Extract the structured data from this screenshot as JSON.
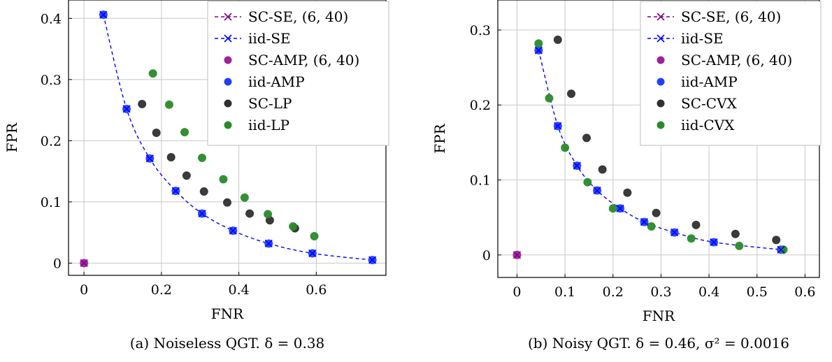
{
  "chart_data": [
    {
      "type": "scatter",
      "caption": "(a) Noiseless QGT. δ = 0.38",
      "xlabel": "FNR",
      "ylabel": "FPR",
      "xlim": [
        -0.04,
        0.78
      ],
      "ylim": [
        -0.02,
        0.43
      ],
      "xticks": [
        0,
        0.2,
        0.4,
        0.6
      ],
      "xtick_labels": [
        "0",
        "0.2",
        "0.4",
        "0.6"
      ],
      "yticks": [
        0,
        0.1,
        0.2,
        0.3,
        0.4
      ],
      "ytick_labels": [
        "0",
        "0.1",
        "0.2",
        "0.3",
        "0.4"
      ],
      "grid": true,
      "legend_position": "top-right",
      "series": [
        {
          "name": "SC-SE, (6, 40)",
          "style": "line-x",
          "color": "#800080",
          "x": [
            0
          ],
          "y": [
            0
          ]
        },
        {
          "name": "iid-SE",
          "style": "line-x",
          "color": "#0000ff",
          "x": [
            0.05,
            0.11,
            0.17,
            0.237,
            0.305,
            0.385,
            0.477,
            0.59,
            0.745
          ],
          "y": [
            0.406,
            0.252,
            0.171,
            0.118,
            0.081,
            0.053,
            0.032,
            0.016,
            0.005
          ]
        },
        {
          "name": "SC-AMP, (6, 40)",
          "style": "dot",
          "color": "#a020a0",
          "x": [
            0
          ],
          "y": [
            0
          ]
        },
        {
          "name": "iid-AMP",
          "style": "dot",
          "color": "#2040ff",
          "x": [
            0.05,
            0.11,
            0.17,
            0.237,
            0.305,
            0.385,
            0.477,
            0.59,
            0.745
          ],
          "y": [
            0.406,
            0.252,
            0.171,
            0.118,
            0.081,
            0.053,
            0.032,
            0.016,
            0.005
          ]
        },
        {
          "name": "SC-LP",
          "style": "dot",
          "color": "#303030",
          "x": [
            0.15,
            0.187,
            0.225,
            0.265,
            0.31,
            0.37,
            0.428,
            0.48,
            0.545
          ],
          "y": [
            0.26,
            0.213,
            0.173,
            0.143,
            0.117,
            0.099,
            0.081,
            0.07,
            0.057
          ]
        },
        {
          "name": "iid-LP",
          "style": "dot",
          "color": "#2a8a2a",
          "x": [
            0.178,
            0.22,
            0.26,
            0.305,
            0.36,
            0.415,
            0.475,
            0.54,
            0.595
          ],
          "y": [
            0.31,
            0.259,
            0.214,
            0.172,
            0.137,
            0.107,
            0.08,
            0.06,
            0.044
          ]
        }
      ]
    },
    {
      "type": "scatter",
      "caption": "(b) Noisy QGT. δ = 0.46, σ² = 0.0016",
      "xlabel": "FNR",
      "ylabel": "FPR",
      "xlim": [
        -0.04,
        0.63
      ],
      "ylim": [
        -0.03,
        0.34
      ],
      "xticks": [
        0,
        0.1,
        0.2,
        0.3,
        0.4,
        0.5,
        0.6
      ],
      "xtick_labels": [
        "0",
        "0.1",
        "0.2",
        "0.3",
        "0.4",
        "0.5",
        "0.6"
      ],
      "yticks": [
        0,
        0.1,
        0.2,
        0.3
      ],
      "ytick_labels": [
        "0",
        "0.1",
        "0.2",
        "0.3"
      ],
      "grid": true,
      "legend_position": "top-right",
      "series": [
        {
          "name": "SC-SE, (6, 40)",
          "style": "line-x",
          "color": "#800080",
          "x": [
            0
          ],
          "y": [
            0
          ]
        },
        {
          "name": "iid-SE",
          "style": "line-x",
          "color": "#0000ff",
          "x": [
            0.045,
            0.085,
            0.125,
            0.167,
            0.215,
            0.265,
            0.328,
            0.41,
            0.55
          ],
          "y": [
            0.273,
            0.172,
            0.119,
            0.086,
            0.062,
            0.044,
            0.03,
            0.017,
            0.007
          ]
        },
        {
          "name": "SC-AMP, (6, 40)",
          "style": "dot",
          "color": "#a020a0",
          "x": [
            0
          ],
          "y": [
            0
          ]
        },
        {
          "name": "iid-AMP",
          "style": "dot",
          "color": "#2040ff",
          "x": [
            0.045,
            0.085,
            0.125,
            0.167,
            0.215,
            0.265,
            0.328,
            0.41,
            0.55
          ],
          "y": [
            0.273,
            0.172,
            0.119,
            0.086,
            0.062,
            0.044,
            0.03,
            0.017,
            0.007
          ]
        },
        {
          "name": "SC-CVX",
          "style": "dot",
          "color": "#303030",
          "x": [
            0.085,
            0.113,
            0.145,
            0.178,
            0.23,
            0.29,
            0.373,
            0.455,
            0.54
          ],
          "y": [
            0.287,
            0.215,
            0.156,
            0.114,
            0.083,
            0.056,
            0.04,
            0.028,
            0.02
          ]
        },
        {
          "name": "iid-CVX",
          "style": "dot",
          "color": "#2a8a2a",
          "x": [
            0.045,
            0.067,
            0.1,
            0.147,
            0.2,
            0.28,
            0.363,
            0.463,
            0.555
          ],
          "y": [
            0.282,
            0.209,
            0.143,
            0.097,
            0.062,
            0.038,
            0.022,
            0.012,
            0.007
          ]
        }
      ]
    }
  ]
}
